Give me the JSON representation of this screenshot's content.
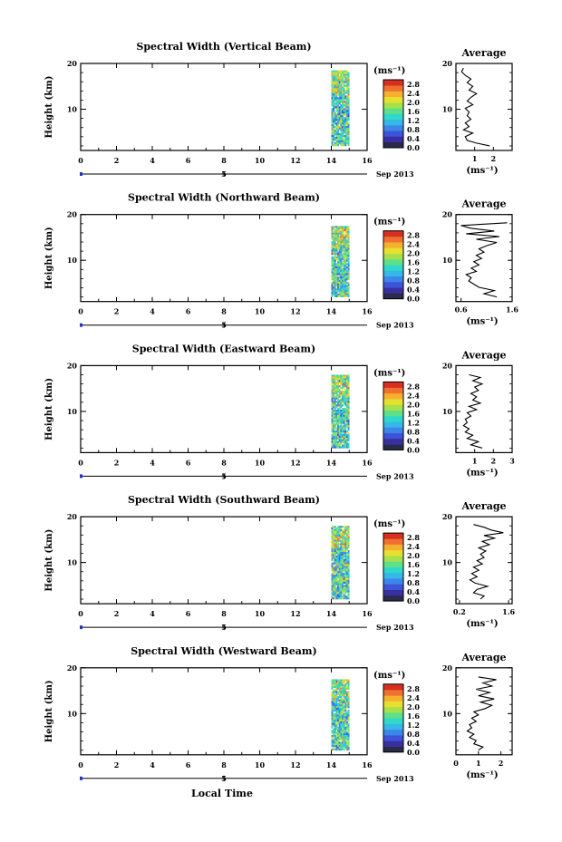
{
  "chart_data": {
    "type": "heatmap",
    "figure_xlabel": "Local Time",
    "date_label": "Sep 2013",
    "day_label": "5",
    "colorbar_unit": "(ms⁻¹)",
    "colorbar_ticks": [
      "0.0",
      "0.4",
      "0.8",
      "1.2",
      "1.6",
      "2.0",
      "2.4",
      "2.8"
    ],
    "colorbar_colors": [
      "#2a2a4a",
      "#3a2fa0",
      "#3d54d8",
      "#3c86e8",
      "#35b8e8",
      "#2fd8c8",
      "#5ee08a",
      "#a8e04a",
      "#e8e030",
      "#f5b030",
      "#f07030",
      "#d83020"
    ],
    "time_ticks": [
      "0",
      "2",
      "4",
      "6",
      "8",
      "10",
      "12",
      "14",
      "16"
    ],
    "height_ticks": [
      "10",
      "20"
    ],
    "avg_title": "Average",
    "avg_unit": "(ms⁻¹)",
    "data_time_range": [
      14.0,
      15.0
    ],
    "panels": [
      {
        "title": "Spectral Width (Vertical Beam)",
        "ylabel": "Height (km)",
        "top_km": 18.5,
        "avg_xlim": [
          0,
          3
        ],
        "avg_ticks": [
          {
            "v": 1,
            "label": "1"
          },
          {
            "v": 2,
            "label": "2"
          }
        ],
        "avg_profile": [
          {
            "h": 2.0,
            "v": 1.8
          },
          {
            "h": 2.6,
            "v": 1.1
          },
          {
            "h": 3.2,
            "v": 0.6
          },
          {
            "h": 4.0,
            "v": 0.5
          },
          {
            "h": 4.8,
            "v": 0.9
          },
          {
            "h": 5.5,
            "v": 0.4
          },
          {
            "h": 6.2,
            "v": 0.7
          },
          {
            "h": 7.0,
            "v": 0.5
          },
          {
            "h": 7.8,
            "v": 0.8
          },
          {
            "h": 8.6,
            "v": 0.6
          },
          {
            "h": 9.4,
            "v": 0.7
          },
          {
            "h": 10.2,
            "v": 0.5
          },
          {
            "h": 11.0,
            "v": 0.9
          },
          {
            "h": 11.8,
            "v": 0.6
          },
          {
            "h": 12.6,
            "v": 0.8
          },
          {
            "h": 13.4,
            "v": 1.1
          },
          {
            "h": 14.2,
            "v": 0.7
          },
          {
            "h": 15.0,
            "v": 0.9
          },
          {
            "h": 15.8,
            "v": 0.6
          },
          {
            "h": 16.6,
            "v": 0.8
          },
          {
            "h": 17.4,
            "v": 0.5
          },
          {
            "h": 18.2,
            "v": 0.3
          },
          {
            "h": 19.0,
            "v": 0.4
          }
        ]
      },
      {
        "title": "Spectral Width (Northward Beam)",
        "ylabel": "Height (km)",
        "top_km": 17.5,
        "avg_xlim": [
          0.5,
          1.6
        ],
        "avg_ticks": [
          {
            "v": 0.6,
            "label": "0.6"
          },
          {
            "v": 1.6,
            "label": "1.6"
          }
        ],
        "avg_profile": [
          {
            "h": 2.0,
            "v": 1.3
          },
          {
            "h": 2.7,
            "v": 1.05
          },
          {
            "h": 3.4,
            "v": 1.25
          },
          {
            "h": 4.1,
            "v": 0.95
          },
          {
            "h": 4.8,
            "v": 0.85
          },
          {
            "h": 5.5,
            "v": 0.75
          },
          {
            "h": 6.2,
            "v": 0.8
          },
          {
            "h": 6.9,
            "v": 0.7
          },
          {
            "h": 7.6,
            "v": 0.9
          },
          {
            "h": 8.3,
            "v": 0.8
          },
          {
            "h": 9.0,
            "v": 0.95
          },
          {
            "h": 9.7,
            "v": 0.85
          },
          {
            "h": 10.4,
            "v": 1.0
          },
          {
            "h": 11.1,
            "v": 0.9
          },
          {
            "h": 11.8,
            "v": 1.05
          },
          {
            "h": 12.5,
            "v": 0.95
          },
          {
            "h": 13.2,
            "v": 1.1
          },
          {
            "h": 13.9,
            "v": 1.3
          },
          {
            "h": 14.6,
            "v": 0.9
          },
          {
            "h": 15.2,
            "v": 1.35
          },
          {
            "h": 15.8,
            "v": 0.7
          },
          {
            "h": 16.4,
            "v": 1.25
          },
          {
            "h": 17.0,
            "v": 0.8
          },
          {
            "h": 17.6,
            "v": 0.6
          },
          {
            "h": 18.2,
            "v": 1.5
          }
        ]
      },
      {
        "title": "Spectral Width (Eastward Beam)",
        "ylabel": "Height (km)",
        "top_km": 18.0,
        "avg_xlim": [
          0,
          3
        ],
        "avg_ticks": [
          {
            "v": 1,
            "label": "1"
          },
          {
            "v": 2,
            "label": "2"
          },
          {
            "v": 3,
            "label": "3"
          }
        ],
        "avg_profile": [
          {
            "h": 2.0,
            "v": 1.4
          },
          {
            "h": 2.7,
            "v": 0.8
          },
          {
            "h": 3.4,
            "v": 1.2
          },
          {
            "h": 4.1,
            "v": 0.6
          },
          {
            "h": 4.8,
            "v": 0.9
          },
          {
            "h": 5.5,
            "v": 0.5
          },
          {
            "h": 6.2,
            "v": 0.7
          },
          {
            "h": 6.9,
            "v": 0.4
          },
          {
            "h": 7.6,
            "v": 0.6
          },
          {
            "h": 8.3,
            "v": 0.5
          },
          {
            "h": 9.0,
            "v": 0.8
          },
          {
            "h": 9.7,
            "v": 0.6
          },
          {
            "h": 10.4,
            "v": 1.1
          },
          {
            "h": 11.1,
            "v": 0.7
          },
          {
            "h": 11.8,
            "v": 1.3
          },
          {
            "h": 12.5,
            "v": 0.9
          },
          {
            "h": 13.2,
            "v": 1.1
          },
          {
            "h": 13.9,
            "v": 0.8
          },
          {
            "h": 14.6,
            "v": 1.2
          },
          {
            "h": 15.3,
            "v": 1.0
          },
          {
            "h": 16.0,
            "v": 1.4
          },
          {
            "h": 16.7,
            "v": 0.9
          },
          {
            "h": 17.4,
            "v": 1.3
          },
          {
            "h": 18.0,
            "v": 0.7
          }
        ]
      },
      {
        "title": "Spectral Width (Southward Beam)",
        "ylabel": "Height (km)",
        "top_km": 18.0,
        "avg_xlim": [
          0.1,
          1.7
        ],
        "avg_ticks": [
          {
            "v": 0.2,
            "label": "0.2"
          },
          {
            "v": 1.6,
            "label": "1.6"
          }
        ],
        "avg_profile": [
          {
            "h": 2.0,
            "v": 0.8
          },
          {
            "h": 2.7,
            "v": 0.9
          },
          {
            "h": 3.4,
            "v": 0.6
          },
          {
            "h": 4.1,
            "v": 0.7
          },
          {
            "h": 4.8,
            "v": 1.0
          },
          {
            "h": 5.5,
            "v": 0.65
          },
          {
            "h": 6.2,
            "v": 0.5
          },
          {
            "h": 6.9,
            "v": 0.7
          },
          {
            "h": 7.6,
            "v": 0.55
          },
          {
            "h": 8.3,
            "v": 0.75
          },
          {
            "h": 9.0,
            "v": 0.6
          },
          {
            "h": 9.7,
            "v": 0.85
          },
          {
            "h": 10.4,
            "v": 0.7
          },
          {
            "h": 11.1,
            "v": 0.9
          },
          {
            "h": 11.8,
            "v": 0.8
          },
          {
            "h": 12.5,
            "v": 0.95
          },
          {
            "h": 13.2,
            "v": 0.75
          },
          {
            "h": 13.9,
            "v": 1.05
          },
          {
            "h": 14.6,
            "v": 0.85
          },
          {
            "h": 15.3,
            "v": 1.2
          },
          {
            "h": 15.9,
            "v": 0.9
          },
          {
            "h": 16.5,
            "v": 1.45
          },
          {
            "h": 17.1,
            "v": 1.1
          },
          {
            "h": 17.7,
            "v": 0.9
          },
          {
            "h": 18.3,
            "v": 0.6
          }
        ]
      },
      {
        "title": "Spectral Width (Westward Beam)",
        "ylabel": "Height (km)",
        "top_km": 17.5,
        "avg_xlim": [
          0,
          2.5
        ],
        "avg_ticks": [
          {
            "v": 0,
            "label": "0"
          },
          {
            "v": 1,
            "label": "1"
          },
          {
            "v": 2,
            "label": "2"
          }
        ],
        "avg_profile": [
          {
            "h": 2.0,
            "v": 1.0
          },
          {
            "h": 2.7,
            "v": 1.2
          },
          {
            "h": 3.4,
            "v": 0.8
          },
          {
            "h": 4.1,
            "v": 0.9
          },
          {
            "h": 4.8,
            "v": 0.6
          },
          {
            "h": 5.5,
            "v": 0.8
          },
          {
            "h": 6.2,
            "v": 0.5
          },
          {
            "h": 6.9,
            "v": 0.7
          },
          {
            "h": 7.6,
            "v": 0.6
          },
          {
            "h": 8.3,
            "v": 0.9
          },
          {
            "h": 9.0,
            "v": 0.7
          },
          {
            "h": 9.7,
            "v": 1.0
          },
          {
            "h": 10.4,
            "v": 0.8
          },
          {
            "h": 11.1,
            "v": 1.3
          },
          {
            "h": 11.8,
            "v": 1.6
          },
          {
            "h": 12.5,
            "v": 1.1
          },
          {
            "h": 13.2,
            "v": 1.7
          },
          {
            "h": 13.9,
            "v": 1.0
          },
          {
            "h": 14.6,
            "v": 1.5
          },
          {
            "h": 15.3,
            "v": 0.9
          },
          {
            "h": 16.0,
            "v": 1.6
          },
          {
            "h": 16.7,
            "v": 1.2
          },
          {
            "h": 17.4,
            "v": 1.8
          },
          {
            "h": 18.0,
            "v": 1.0
          }
        ]
      }
    ]
  }
}
